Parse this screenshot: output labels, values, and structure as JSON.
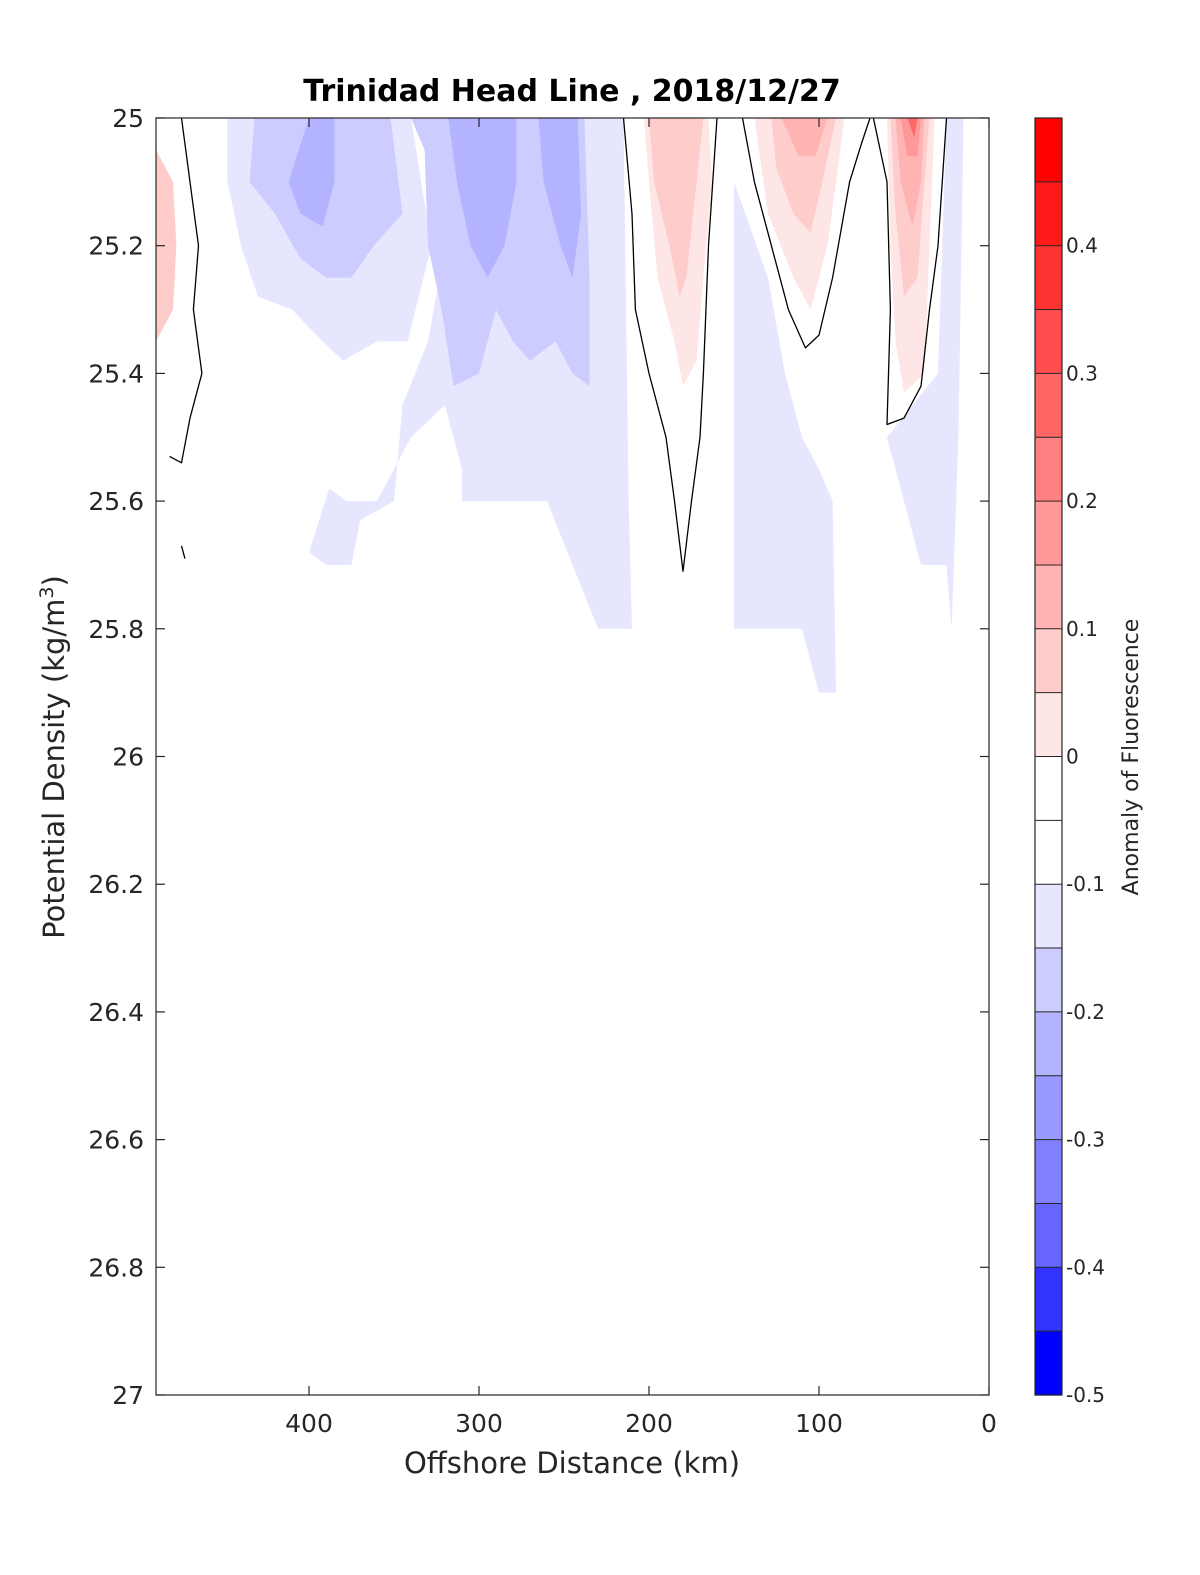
{
  "chart_data": {
    "type": "contour",
    "title": "Trinidad Head Line , 2018/12/27",
    "xlabel": "Offshore Distance (km)",
    "ylabel": "Potential Density (kg/m",
    "ylabel_sup": "3",
    "ylabel_end": ")",
    "xlim": [
      490,
      0
    ],
    "ylim": [
      25,
      27
    ],
    "x_reversed": true,
    "y_reversed": true,
    "xticks": [
      400,
      300,
      200,
      100,
      0
    ],
    "xtick_labels": [
      "400",
      "300",
      "200",
      "100",
      "0"
    ],
    "yticks": [
      25,
      25.2,
      25.4,
      25.6,
      25.8,
      26,
      26.2,
      26.4,
      26.6,
      26.8,
      27
    ],
    "ytick_labels": [
      "25",
      "25.2",
      "25.4",
      "25.6",
      "25.8",
      "26",
      "26.2",
      "26.4",
      "26.6",
      "26.8",
      "27"
    ],
    "colorbar": {
      "label": "Anomaly of Fluorescence",
      "range": [
        -0.5,
        0.5
      ],
      "ticks": [
        0.4,
        0.3,
        0.2,
        0.1,
        0,
        -0.1,
        -0.2,
        -0.3,
        -0.4,
        -0.5
      ],
      "tick_labels": [
        "0.4",
        "0.3",
        "0.2",
        "0.1",
        "0",
        "-0.1",
        "-0.2",
        "-0.3",
        "-0.4",
        "-0.5"
      ],
      "levels": [
        {
          "lo": 0.45,
          "hi": 0.5,
          "color": "#ff0000"
        },
        {
          "lo": 0.4,
          "hi": 0.45,
          "color": "#ff1a1a"
        },
        {
          "lo": 0.35,
          "hi": 0.4,
          "color": "#ff3333"
        },
        {
          "lo": 0.3,
          "hi": 0.35,
          "color": "#ff4d4d"
        },
        {
          "lo": 0.25,
          "hi": 0.3,
          "color": "#ff6666"
        },
        {
          "lo": 0.2,
          "hi": 0.25,
          "color": "#ff8080"
        },
        {
          "lo": 0.15,
          "hi": 0.2,
          "color": "#ff9999"
        },
        {
          "lo": 0.1,
          "hi": 0.15,
          "color": "#ffb3b3"
        },
        {
          "lo": 0.05,
          "hi": 0.1,
          "color": "#ffcccc"
        },
        {
          "lo": 0.0,
          "hi": 0.05,
          "color": "#ffe6e6"
        },
        {
          "lo": -0.05,
          "hi": 0.0,
          "color": "#ffffff"
        },
        {
          "lo": -0.1,
          "hi": -0.05,
          "color": "#ffffff"
        },
        {
          "lo": -0.15,
          "hi": -0.1,
          "color": "#e6e6ff"
        },
        {
          "lo": -0.2,
          "hi": -0.15,
          "color": "#ccccff"
        },
        {
          "lo": -0.25,
          "hi": -0.2,
          "color": "#b3b3ff"
        },
        {
          "lo": -0.3,
          "hi": -0.25,
          "color": "#9999ff"
        },
        {
          "lo": -0.35,
          "hi": -0.3,
          "color": "#8080ff"
        },
        {
          "lo": -0.4,
          "hi": -0.35,
          "color": "#6666ff"
        },
        {
          "lo": -0.45,
          "hi": -0.4,
          "color": "#3333ff"
        },
        {
          "lo": -0.5,
          "hi": -0.45,
          "color": "#0000ff"
        }
      ]
    },
    "filled_regions": [
      {
        "name": "neg-pale-west",
        "color": "#e6e6ff",
        "points": [
          [
            448,
            25.0
          ],
          [
            448,
            25.1
          ],
          [
            440,
            25.2
          ],
          [
            430,
            25.28
          ],
          [
            410,
            25.3
          ],
          [
            392,
            25.35
          ],
          [
            380,
            25.38
          ],
          [
            360,
            25.35
          ],
          [
            342,
            25.35
          ],
          [
            328,
            25.2
          ],
          [
            340,
            25.0
          ]
        ]
      },
      {
        "name": "neg-pale-central",
        "color": "#e6e6ff",
        "points": [
          [
            340,
            25.0
          ],
          [
            322,
            25.05
          ],
          [
            320,
            25.2
          ],
          [
            330,
            25.35
          ],
          [
            345,
            25.45
          ],
          [
            350,
            25.6
          ],
          [
            370,
            25.63
          ],
          [
            375,
            25.7
          ],
          [
            390,
            25.7
          ],
          [
            400,
            25.68
          ],
          [
            388,
            25.58
          ],
          [
            378,
            25.6
          ],
          [
            360,
            25.6
          ],
          [
            350,
            25.55
          ],
          [
            340,
            25.5
          ],
          [
            320,
            25.45
          ],
          [
            310,
            25.55
          ],
          [
            310,
            25.6
          ],
          [
            260,
            25.6
          ],
          [
            245,
            25.7
          ],
          [
            230,
            25.8
          ],
          [
            210,
            25.8
          ],
          [
            212,
            25.6
          ],
          [
            215,
            25.0
          ]
        ]
      },
      {
        "name": "neg-pale-middle",
        "color": "#e6e6ff",
        "points": [
          [
            150,
            25.1
          ],
          [
            130,
            25.25
          ],
          [
            120,
            25.4
          ],
          [
            110,
            25.5
          ],
          [
            100,
            25.55
          ],
          [
            92,
            25.6
          ],
          [
            90,
            25.9
          ],
          [
            100,
            25.9
          ],
          [
            110,
            25.8
          ],
          [
            150,
            25.8
          ]
        ]
      },
      {
        "name": "neg-pale-east",
        "color": "#e6e6ff",
        "points": [
          [
            60,
            25.5
          ],
          [
            50,
            25.6
          ],
          [
            40,
            25.7
          ],
          [
            25,
            25.7
          ],
          [
            22,
            25.8
          ],
          [
            18,
            25.5
          ],
          [
            15,
            25.0
          ],
          [
            25,
            25.0
          ],
          [
            30,
            25.4
          ]
        ]
      },
      {
        "name": "neg-light-west",
        "color": "#ccccff",
        "points": [
          [
            432,
            25.0
          ],
          [
            435,
            25.1
          ],
          [
            420,
            25.15
          ],
          [
            405,
            25.22
          ],
          [
            390,
            25.25
          ],
          [
            375,
            25.25
          ],
          [
            362,
            25.2
          ],
          [
            345,
            25.15
          ],
          [
            352,
            25.0
          ]
        ]
      },
      {
        "name": "neg-light-central",
        "color": "#ccccff",
        "points": [
          [
            340,
            25.0
          ],
          [
            332,
            25.05
          ],
          [
            330,
            25.2
          ],
          [
            322,
            25.3
          ],
          [
            315,
            25.42
          ],
          [
            300,
            25.4
          ],
          [
            290,
            25.3
          ],
          [
            280,
            25.35
          ],
          [
            270,
            25.38
          ],
          [
            255,
            25.35
          ],
          [
            245,
            25.4
          ],
          [
            235,
            25.42
          ],
          [
            235,
            25.25
          ],
          [
            238,
            25.0
          ]
        ]
      },
      {
        "name": "neg-mid-west",
        "color": "#b3b3ff",
        "points": [
          [
            400,
            25.0
          ],
          [
            412,
            25.1
          ],
          [
            405,
            25.15
          ],
          [
            392,
            25.17
          ],
          [
            385,
            25.1
          ],
          [
            385,
            25.0
          ]
        ]
      },
      {
        "name": "neg-mid-central",
        "color": "#b3b3ff",
        "points": [
          [
            318,
            25.0
          ],
          [
            313,
            25.1
          ],
          [
            305,
            25.2
          ],
          [
            295,
            25.25
          ],
          [
            285,
            25.2
          ],
          [
            278,
            25.1
          ],
          [
            278,
            25.0
          ]
        ]
      },
      {
        "name": "neg-mid-east",
        "color": "#b3b3ff",
        "points": [
          [
            265,
            25.0
          ],
          [
            262,
            25.1
          ],
          [
            252,
            25.2
          ],
          [
            245,
            25.25
          ],
          [
            240,
            25.15
          ],
          [
            242,
            25.0
          ]
        ]
      },
      {
        "name": "pos-west-edge",
        "color": "#ffcccc",
        "points": [
          [
            490,
            25.05
          ],
          [
            480,
            25.1
          ],
          [
            478,
            25.2
          ],
          [
            480,
            25.3
          ],
          [
            490,
            25.35
          ]
        ]
      },
      {
        "name": "pos-a-pale",
        "color": "#ffe6e6",
        "points": [
          [
            203,
            25.0
          ],
          [
            200,
            25.1
          ],
          [
            195,
            25.25
          ],
          [
            185,
            25.35
          ],
          [
            180,
            25.42
          ],
          [
            172,
            25.38
          ],
          [
            168,
            25.25
          ],
          [
            163,
            25.1
          ],
          [
            165,
            25.0
          ]
        ]
      },
      {
        "name": "pos-a-light",
        "color": "#ffcccc",
        "points": [
          [
            200,
            25.0
          ],
          [
            197,
            25.1
          ],
          [
            188,
            25.2
          ],
          [
            182,
            25.28
          ],
          [
            178,
            25.25
          ],
          [
            172,
            25.1
          ],
          [
            168,
            25.0
          ]
        ]
      },
      {
        "name": "pos-b-pale",
        "color": "#ffe6e6",
        "points": [
          [
            138,
            25.0
          ],
          [
            130,
            25.15
          ],
          [
            115,
            25.25
          ],
          [
            105,
            25.3
          ],
          [
            95,
            25.2
          ],
          [
            85,
            25.0
          ]
        ]
      },
      {
        "name": "pos-b-light",
        "color": "#ffcccc",
        "points": [
          [
            128,
            25.0
          ],
          [
            125,
            25.08
          ],
          [
            115,
            25.15
          ],
          [
            105,
            25.18
          ],
          [
            98,
            25.1
          ],
          [
            90,
            25.0
          ]
        ]
      },
      {
        "name": "pos-b-mid",
        "color": "#ffb3b3",
        "points": [
          [
            122,
            25.0
          ],
          [
            112,
            25.06
          ],
          [
            102,
            25.06
          ],
          [
            95,
            25.0
          ]
        ]
      },
      {
        "name": "pos-c-pale",
        "color": "#ffe6e6",
        "points": [
          [
            60,
            25.0
          ],
          [
            58,
            25.2
          ],
          [
            55,
            25.35
          ],
          [
            50,
            25.43
          ],
          [
            38,
            25.4
          ],
          [
            35,
            25.2
          ],
          [
            32,
            25.0
          ]
        ]
      },
      {
        "name": "pos-c-light",
        "color": "#ffcccc",
        "points": [
          [
            58,
            25.0
          ],
          [
            55,
            25.15
          ],
          [
            50,
            25.28
          ],
          [
            42,
            25.25
          ],
          [
            38,
            25.1
          ],
          [
            35,
            25.0
          ]
        ]
      },
      {
        "name": "pos-c-mid",
        "color": "#ffb3b3",
        "points": [
          [
            55,
            25.0
          ],
          [
            52,
            25.1
          ],
          [
            45,
            25.17
          ],
          [
            40,
            25.1
          ],
          [
            38,
            25.0
          ]
        ]
      },
      {
        "name": "pos-c-strong",
        "color": "#ff9999",
        "points": [
          [
            52,
            25.0
          ],
          [
            48,
            25.06
          ],
          [
            42,
            25.06
          ],
          [
            40,
            25.0
          ]
        ]
      },
      {
        "name": "pos-c-peak",
        "color": "#ff6666",
        "points": [
          [
            48,
            25.0
          ],
          [
            44,
            25.03
          ],
          [
            42,
            25.0
          ]
        ]
      }
    ],
    "zero_contours": [
      {
        "name": "contour-west",
        "points": [
          [
            475,
            25.0
          ],
          [
            470,
            25.1
          ],
          [
            465,
            25.2
          ],
          [
            468,
            25.3
          ],
          [
            463,
            25.4
          ],
          [
            470,
            25.47
          ],
          [
            475,
            25.54
          ],
          [
            482,
            25.53
          ]
        ]
      },
      {
        "name": "contour-west-stub",
        "points": [
          [
            475,
            25.67
          ],
          [
            473,
            25.69
          ]
        ]
      },
      {
        "name": "contour-a",
        "points": [
          [
            215,
            25.0
          ],
          [
            210,
            25.15
          ],
          [
            208,
            25.3
          ],
          [
            200,
            25.4
          ],
          [
            190,
            25.5
          ],
          [
            185,
            25.6
          ],
          [
            180,
            25.71
          ],
          [
            175,
            25.6
          ],
          [
            170,
            25.5
          ],
          [
            168,
            25.4
          ],
          [
            165,
            25.2
          ],
          [
            160,
            25.0
          ]
        ]
      },
      {
        "name": "contour-b",
        "points": [
          [
            145,
            25.0
          ],
          [
            138,
            25.1
          ],
          [
            128,
            25.2
          ],
          [
            118,
            25.3
          ],
          [
            108,
            25.36
          ],
          [
            100,
            25.34
          ],
          [
            92,
            25.25
          ],
          [
            82,
            25.1
          ],
          [
            75,
            25.04
          ],
          [
            70,
            25.0
          ]
        ]
      },
      {
        "name": "contour-c",
        "points": [
          [
            68,
            25.0
          ],
          [
            60,
            25.1
          ],
          [
            58,
            25.3
          ],
          [
            60,
            25.48
          ],
          [
            50,
            25.47
          ],
          [
            40,
            25.42
          ],
          [
            35,
            25.3
          ],
          [
            30,
            25.2
          ],
          [
            25,
            25.0
          ]
        ]
      }
    ]
  }
}
